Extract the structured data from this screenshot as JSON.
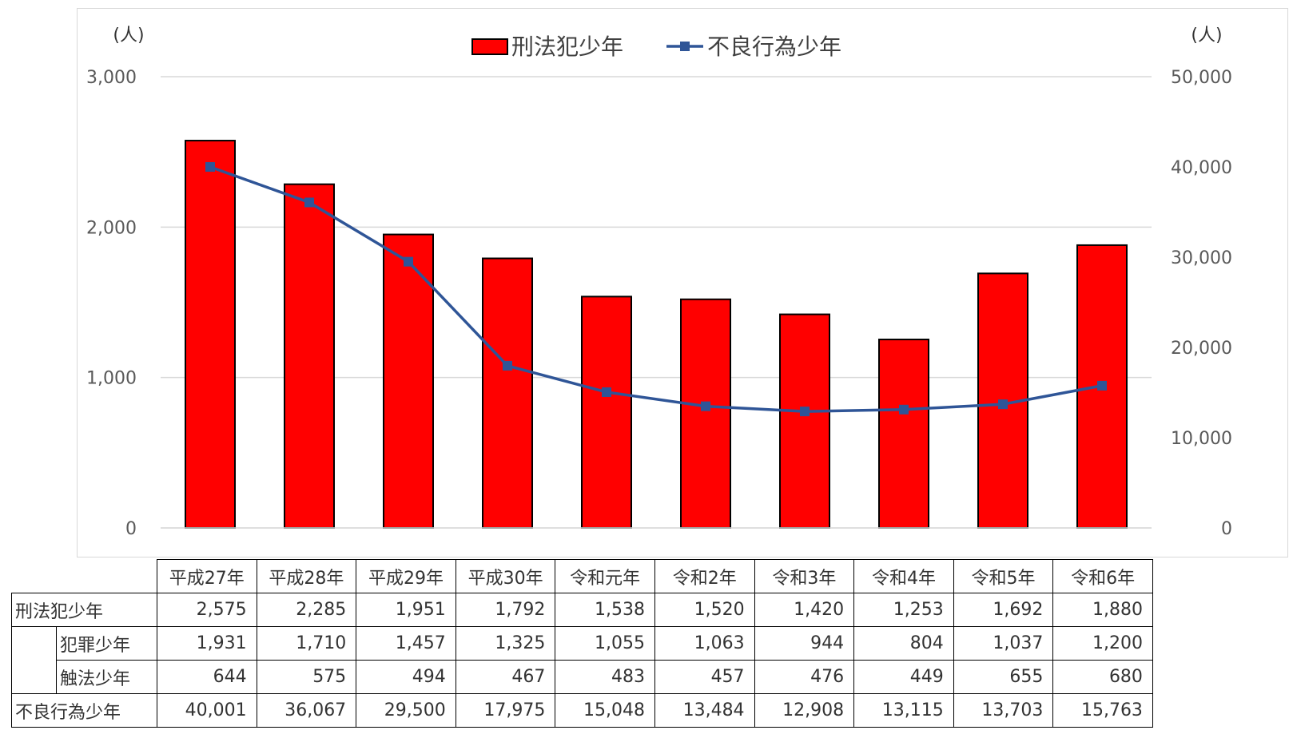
{
  "chart_data": {
    "type": "bar+line",
    "categories": [
      "平成27年",
      "平成28年",
      "平成29年",
      "平成30年",
      "令和元年",
      "令和2年",
      "令和3年",
      "令和4年",
      "令和5年",
      "令和6年"
    ],
    "series": [
      {
        "name": "刑法犯少年",
        "type": "bar",
        "axis": "left",
        "color": "#ff0000",
        "values": [
          2575,
          2285,
          1951,
          1792,
          1538,
          1520,
          1420,
          1253,
          1692,
          1880
        ]
      },
      {
        "name": "不良行為少年",
        "type": "line",
        "axis": "right",
        "color": "#2f5597",
        "values": [
          40001,
          36067,
          29500,
          17975,
          15048,
          13484,
          12908,
          13115,
          13703,
          15763
        ]
      }
    ],
    "y_left": {
      "unit": "(人)",
      "ylim": [
        0,
        3000
      ],
      "ticks": [
        "0",
        "1,000",
        "2,000",
        "3,000"
      ]
    },
    "y_right": {
      "unit": "(人)",
      "ylim": [
        0,
        50000
      ],
      "ticks": [
        "0",
        "10,000",
        "20,000",
        "30,000",
        "40,000",
        "50,000"
      ]
    },
    "grid": true,
    "legend": "top-center"
  },
  "table": {
    "headers": [
      "平成27年",
      "平成28年",
      "平成29年",
      "平成30年",
      "令和元年",
      "令和2年",
      "令和3年",
      "令和4年",
      "令和5年",
      "令和6年"
    ],
    "rows": [
      {
        "label": "刑法犯少年",
        "indent": false,
        "values": [
          "2,575",
          "2,285",
          "1,951",
          "1,792",
          "1,538",
          "1,520",
          "1,420",
          "1,253",
          "1,692",
          "1,880"
        ]
      },
      {
        "label": "犯罪少年",
        "indent": true,
        "values": [
          "1,931",
          "1,710",
          "1,457",
          "1,325",
          "1,055",
          "1,063",
          "944",
          "804",
          "1,037",
          "1,200"
        ]
      },
      {
        "label": "触法少年",
        "indent": true,
        "values": [
          "644",
          "575",
          "494",
          "467",
          "483",
          "457",
          "476",
          "449",
          "655",
          "680"
        ]
      },
      {
        "label": "不良行為少年",
        "indent": false,
        "values": [
          "40,001",
          "36,067",
          "29,500",
          "17,975",
          "15,048",
          "13,484",
          "12,908",
          "13,115",
          "13,703",
          "15,763"
        ]
      }
    ]
  }
}
